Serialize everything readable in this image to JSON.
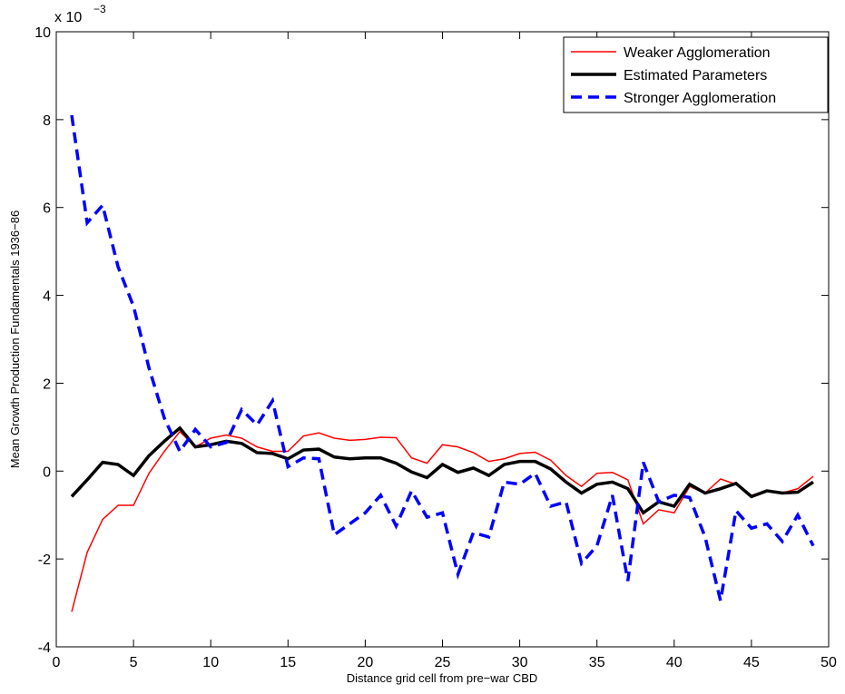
{
  "chart_data": {
    "type": "line",
    "xlabel": "Distance grid cell from pre−war CBD",
    "ylabel": "Mean Growth Production Fundamentals 1936−86",
    "y_scale_base": "x 10",
    "y_scale_exponent": "−3",
    "x": [
      1,
      2,
      3,
      4,
      5,
      6,
      7,
      8,
      9,
      10,
      11,
      12,
      13,
      14,
      15,
      16,
      17,
      18,
      19,
      20,
      21,
      22,
      23,
      24,
      25,
      26,
      27,
      28,
      29,
      30,
      31,
      32,
      33,
      34,
      35,
      36,
      37,
      38,
      39,
      40,
      41,
      42,
      43,
      44,
      45,
      46,
      47,
      48,
      49
    ],
    "series": [
      {
        "name": "Weaker Agglomeration",
        "color": "#ff0000",
        "width": 1.5,
        "dash": "solid",
        "values": [
          -3.2,
          -1.85,
          -1.1,
          -0.78,
          -0.78,
          -0.05,
          0.45,
          0.9,
          0.55,
          0.75,
          0.82,
          0.75,
          0.55,
          0.45,
          0.45,
          0.8,
          0.87,
          0.75,
          0.7,
          0.72,
          0.77,
          0.76,
          0.3,
          0.18,
          0.6,
          0.55,
          0.42,
          0.22,
          0.28,
          0.4,
          0.43,
          0.25,
          -0.1,
          -0.35,
          -0.05,
          -0.03,
          -0.2,
          -1.2,
          -0.88,
          -0.95,
          -0.35,
          -0.5,
          -0.18,
          -0.3,
          -0.55,
          -0.45,
          -0.5,
          -0.4,
          -0.12
        ]
      },
      {
        "name": "Estimated Parameters",
        "color": "#000000",
        "width": 3.5,
        "dash": "solid",
        "values": [
          -0.58,
          -0.2,
          0.2,
          0.15,
          -0.1,
          0.35,
          0.68,
          0.98,
          0.55,
          0.6,
          0.68,
          0.63,
          0.42,
          0.4,
          0.28,
          0.48,
          0.5,
          0.32,
          0.28,
          0.3,
          0.3,
          0.18,
          -0.02,
          -0.15,
          0.15,
          -0.03,
          0.07,
          -0.1,
          0.15,
          0.22,
          0.22,
          0.05,
          -0.25,
          -0.5,
          -0.3,
          -0.25,
          -0.4,
          -0.95,
          -0.7,
          -0.8,
          -0.3,
          -0.5,
          -0.4,
          -0.28,
          -0.58,
          -0.45,
          -0.5,
          -0.48,
          -0.25
        ]
      },
      {
        "name": "Stronger Agglomeration",
        "color": "#0000ff",
        "width": 3.5,
        "dash": "dashed",
        "values": [
          8.1,
          5.65,
          6.05,
          4.65,
          3.75,
          2.35,
          1.2,
          0.45,
          0.95,
          0.55,
          0.65,
          1.4,
          1.05,
          1.6,
          0.1,
          0.3,
          0.28,
          -1.45,
          -1.2,
          -0.95,
          -0.55,
          -1.25,
          -0.45,
          -1.05,
          -0.95,
          -2.35,
          -1.4,
          -1.5,
          -0.25,
          -0.3,
          -0.05,
          -0.8,
          -0.7,
          -2.1,
          -1.7,
          -0.55,
          -2.5,
          0.2,
          -0.7,
          -0.55,
          -0.6,
          -1.5,
          -2.95,
          -0.9,
          -1.3,
          -1.2,
          -1.6,
          -1.0,
          -1.7
        ]
      }
    ],
    "xlim": [
      0,
      50
    ],
    "xticks": [
      0,
      5,
      10,
      15,
      20,
      25,
      30,
      35,
      40,
      45,
      50
    ],
    "ylim": [
      -4,
      10
    ],
    "yticks": [
      -4,
      -2,
      0,
      2,
      4,
      6,
      8,
      10
    ],
    "grid": false,
    "legend": "upper right"
  }
}
